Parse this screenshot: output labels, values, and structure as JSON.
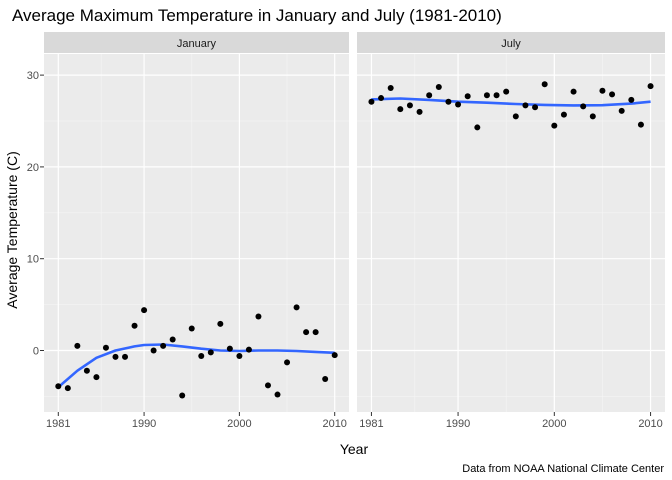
{
  "chart_data": {
    "type": "scatter",
    "title": "Average Maximum Temperature in January and July (1981-2010)",
    "xlabel": "Year",
    "ylabel": "Average Temperature (C)",
    "caption": "Data from NOAA National Climate Center",
    "xlim": [
      1979.5,
      2011.5
    ],
    "ylim": [
      -6.7,
      32.3
    ],
    "x_ticks": [
      1981,
      1990,
      2000,
      2010
    ],
    "y_ticks": [
      0,
      10,
      20,
      30
    ],
    "grid": true,
    "legend": "none",
    "point_color": "#000000",
    "smooth_color": "#3366FF",
    "panel_bg": "#EBEBEB",
    "strip_bg": "#D9D9D9",
    "panels": [
      {
        "name": "January",
        "x": [
          1981,
          1982,
          1983,
          1984,
          1985,
          1986,
          1987,
          1988,
          1989,
          1990,
          1991,
          1992,
          1993,
          1994,
          1995,
          1996,
          1997,
          1998,
          1999,
          2000,
          2001,
          2002,
          2003,
          2004,
          2005,
          2006,
          2007,
          2008,
          2009,
          2010
        ],
        "y": [
          -3.9,
          -4.1,
          0.5,
          -2.2,
          -2.9,
          0.3,
          -0.7,
          -0.7,
          2.7,
          4.4,
          0.0,
          0.5,
          1.2,
          -4.9,
          2.4,
          -0.6,
          -0.2,
          2.9,
          0.2,
          -0.6,
          0.1,
          3.7,
          -3.8,
          -4.8,
          -1.3,
          4.7,
          2.0,
          2.0,
          -3.1,
          -0.5
        ],
        "smooth": [
          [
            1981,
            -4.0
          ],
          [
            1983,
            -2.2
          ],
          [
            1985,
            -0.8
          ],
          [
            1987,
            0.0
          ],
          [
            1989,
            0.45
          ],
          [
            1990,
            0.6
          ],
          [
            1992,
            0.65
          ],
          [
            1994,
            0.45
          ],
          [
            1996,
            0.2
          ],
          [
            1998,
            0.0
          ],
          [
            2000,
            -0.05
          ],
          [
            2002,
            0.0
          ],
          [
            2004,
            0.0
          ],
          [
            2006,
            -0.05
          ],
          [
            2008,
            -0.15
          ],
          [
            2010,
            -0.25
          ]
        ]
      },
      {
        "name": "July",
        "x": [
          1981,
          1982,
          1983,
          1984,
          1985,
          1986,
          1987,
          1988,
          1989,
          1990,
          1991,
          1992,
          1993,
          1994,
          1995,
          1996,
          1997,
          1998,
          1999,
          2000,
          2001,
          2002,
          2003,
          2004,
          2005,
          2006,
          2007,
          2008,
          2009,
          2010
        ],
        "y": [
          27.1,
          27.5,
          28.6,
          26.3,
          26.7,
          26.0,
          27.8,
          28.7,
          27.1,
          26.8,
          27.7,
          24.3,
          27.8,
          27.8,
          28.2,
          25.5,
          26.7,
          26.5,
          29.0,
          24.5,
          25.7,
          28.2,
          26.6,
          25.5,
          28.3,
          27.9,
          26.1,
          27.3,
          24.6,
          28.8
        ],
        "smooth": [
          [
            1981,
            27.35
          ],
          [
            1984,
            27.45
          ],
          [
            1987,
            27.3
          ],
          [
            1990,
            27.1
          ],
          [
            1993,
            27.0
          ],
          [
            1996,
            26.85
          ],
          [
            1999,
            26.75
          ],
          [
            2002,
            26.7
          ],
          [
            2005,
            26.72
          ],
          [
            2008,
            26.9
          ],
          [
            2010,
            27.1
          ]
        ]
      }
    ]
  }
}
